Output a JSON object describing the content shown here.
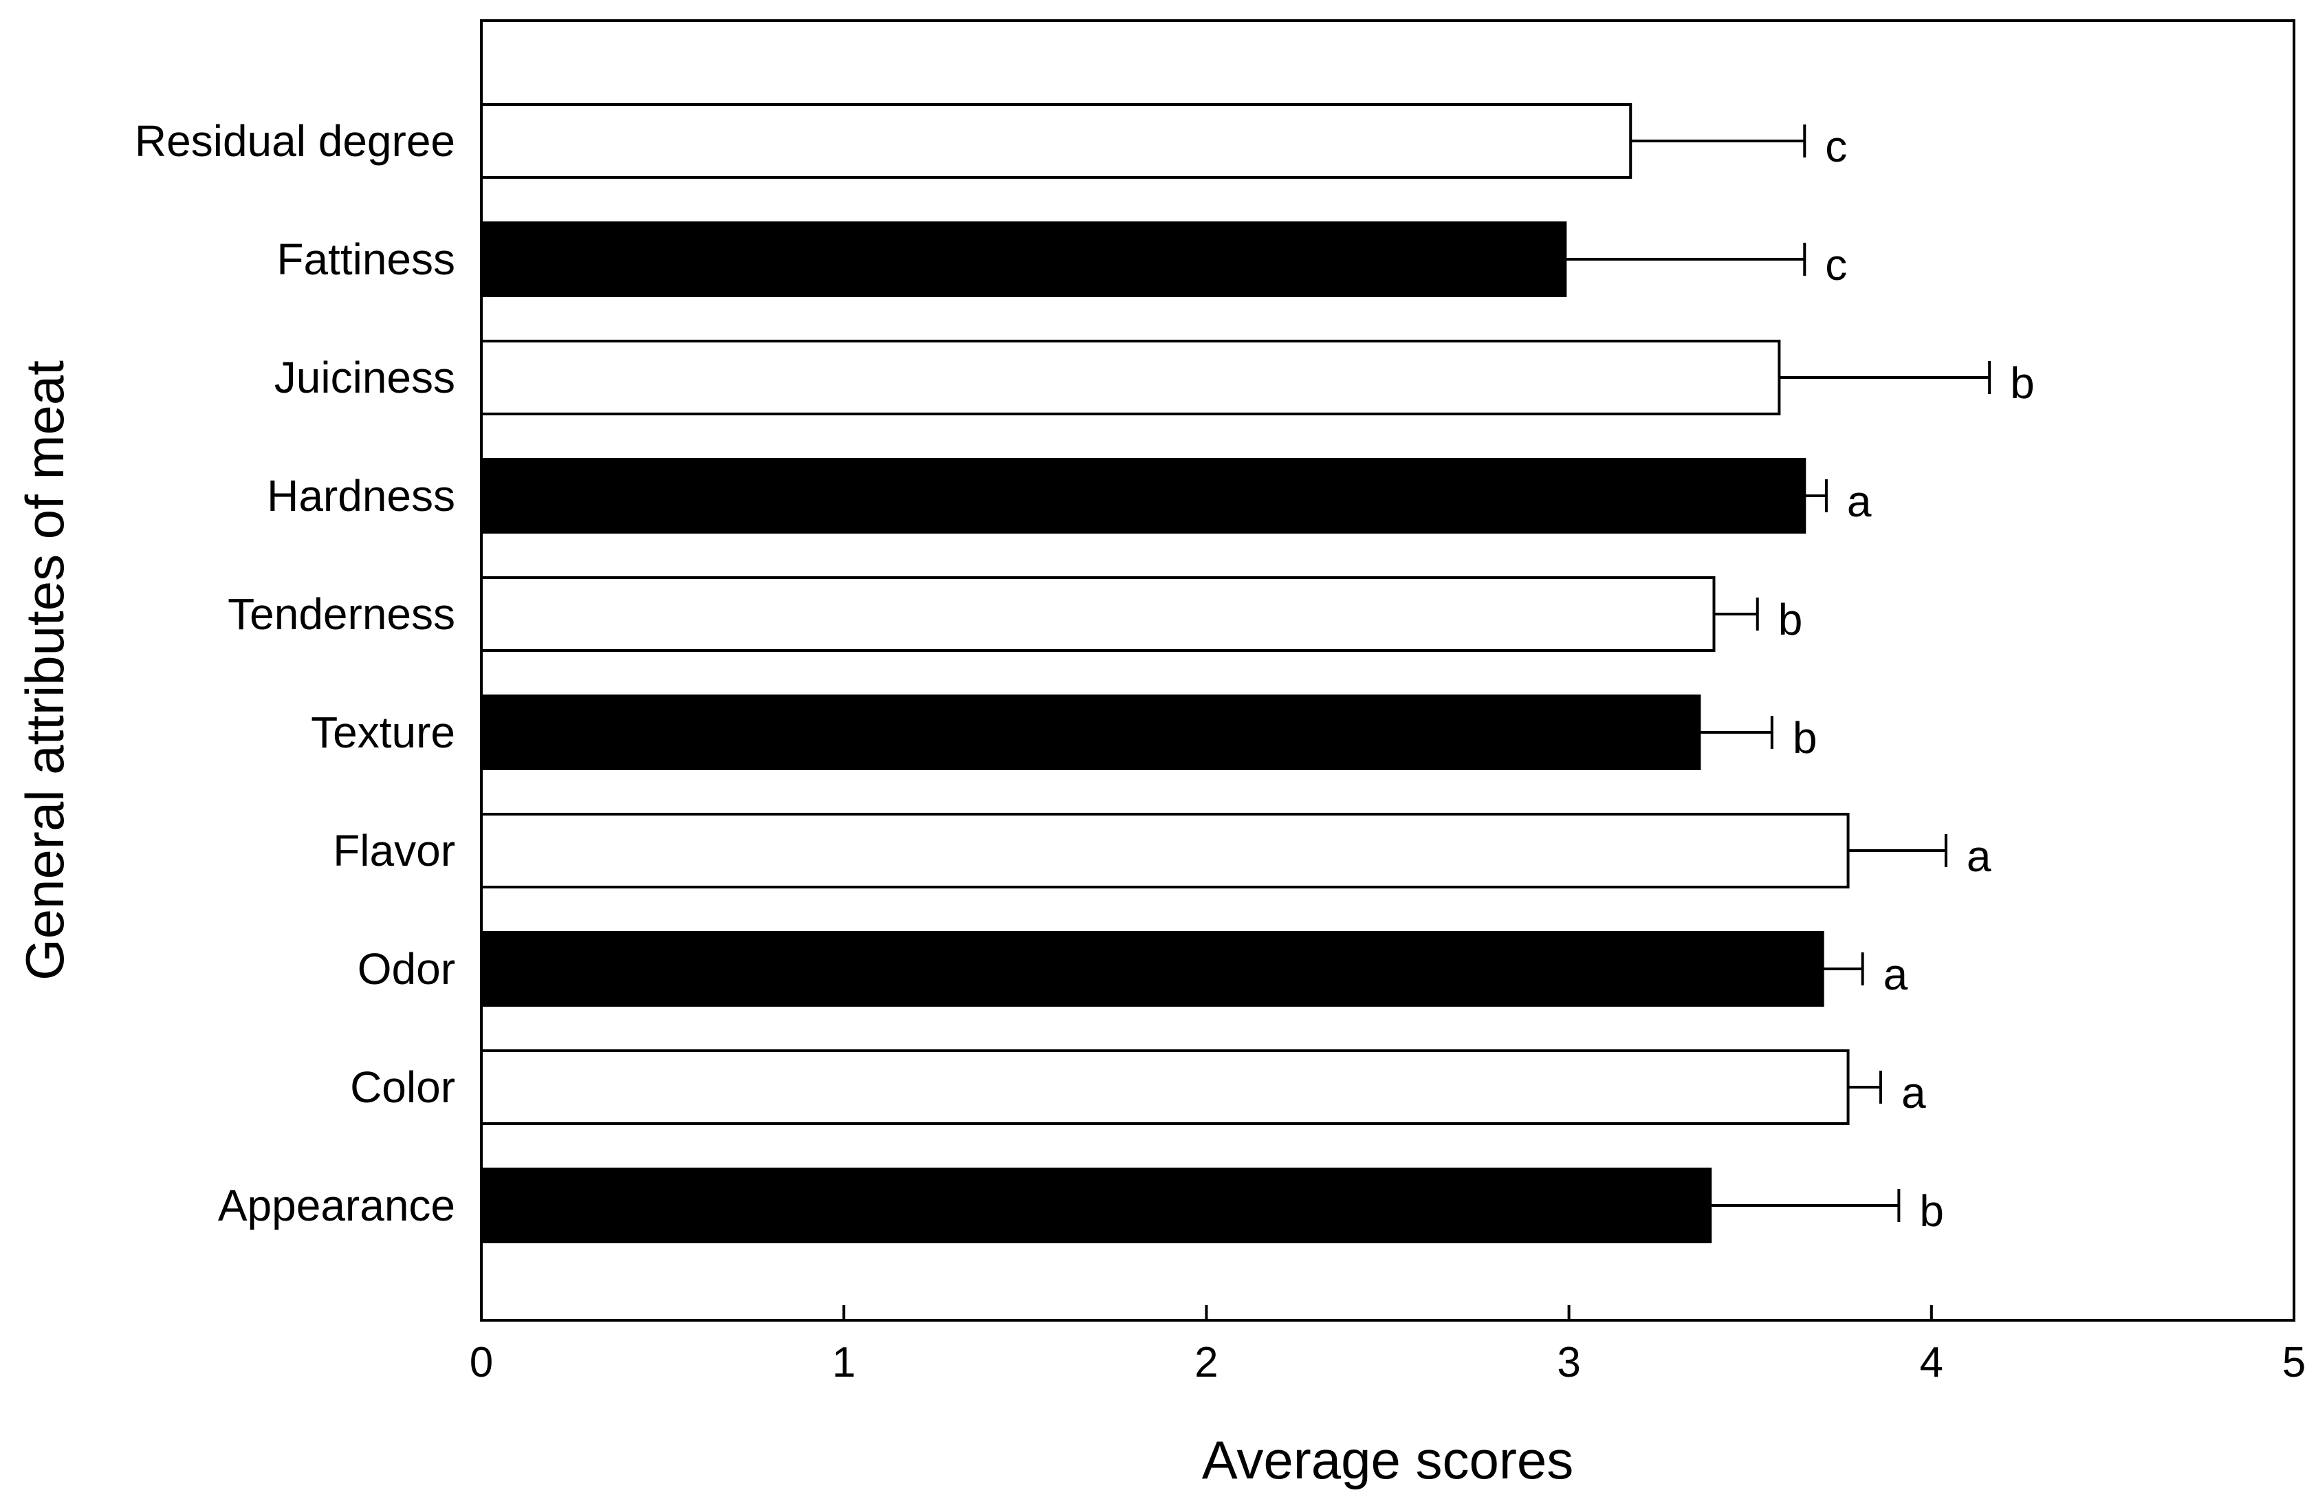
{
  "chart_data": {
    "type": "bar",
    "orientation": "horizontal",
    "title": "",
    "xlabel": "Average scores",
    "ylabel": "General attributes of meat",
    "xlim": [
      0,
      5
    ],
    "xticks": [
      "0",
      "1",
      "2",
      "3",
      "4",
      "5"
    ],
    "grid": false,
    "legend": "none",
    "categories": [
      "Residual degree",
      "Fattiness",
      "Juiciness",
      "Hardness",
      "Tenderness",
      "Texture",
      "Flavor",
      "Odor",
      "Color",
      "Appearance"
    ],
    "values": [
      3.17,
      2.99,
      3.58,
      3.65,
      3.4,
      3.36,
      3.77,
      3.7,
      3.77,
      3.39
    ],
    "errors": [
      0.48,
      0.66,
      0.58,
      0.06,
      0.12,
      0.2,
      0.27,
      0.11,
      0.09,
      0.52
    ],
    "significance": [
      "c",
      "c",
      "b",
      "a",
      "b",
      "b",
      "a",
      "a",
      "a",
      "b"
    ],
    "fills": [
      "#ffffff",
      "#000000",
      "#ffffff",
      "#000000",
      "#ffffff",
      "#000000",
      "#ffffff",
      "#000000",
      "#ffffff",
      "#000000"
    ]
  }
}
